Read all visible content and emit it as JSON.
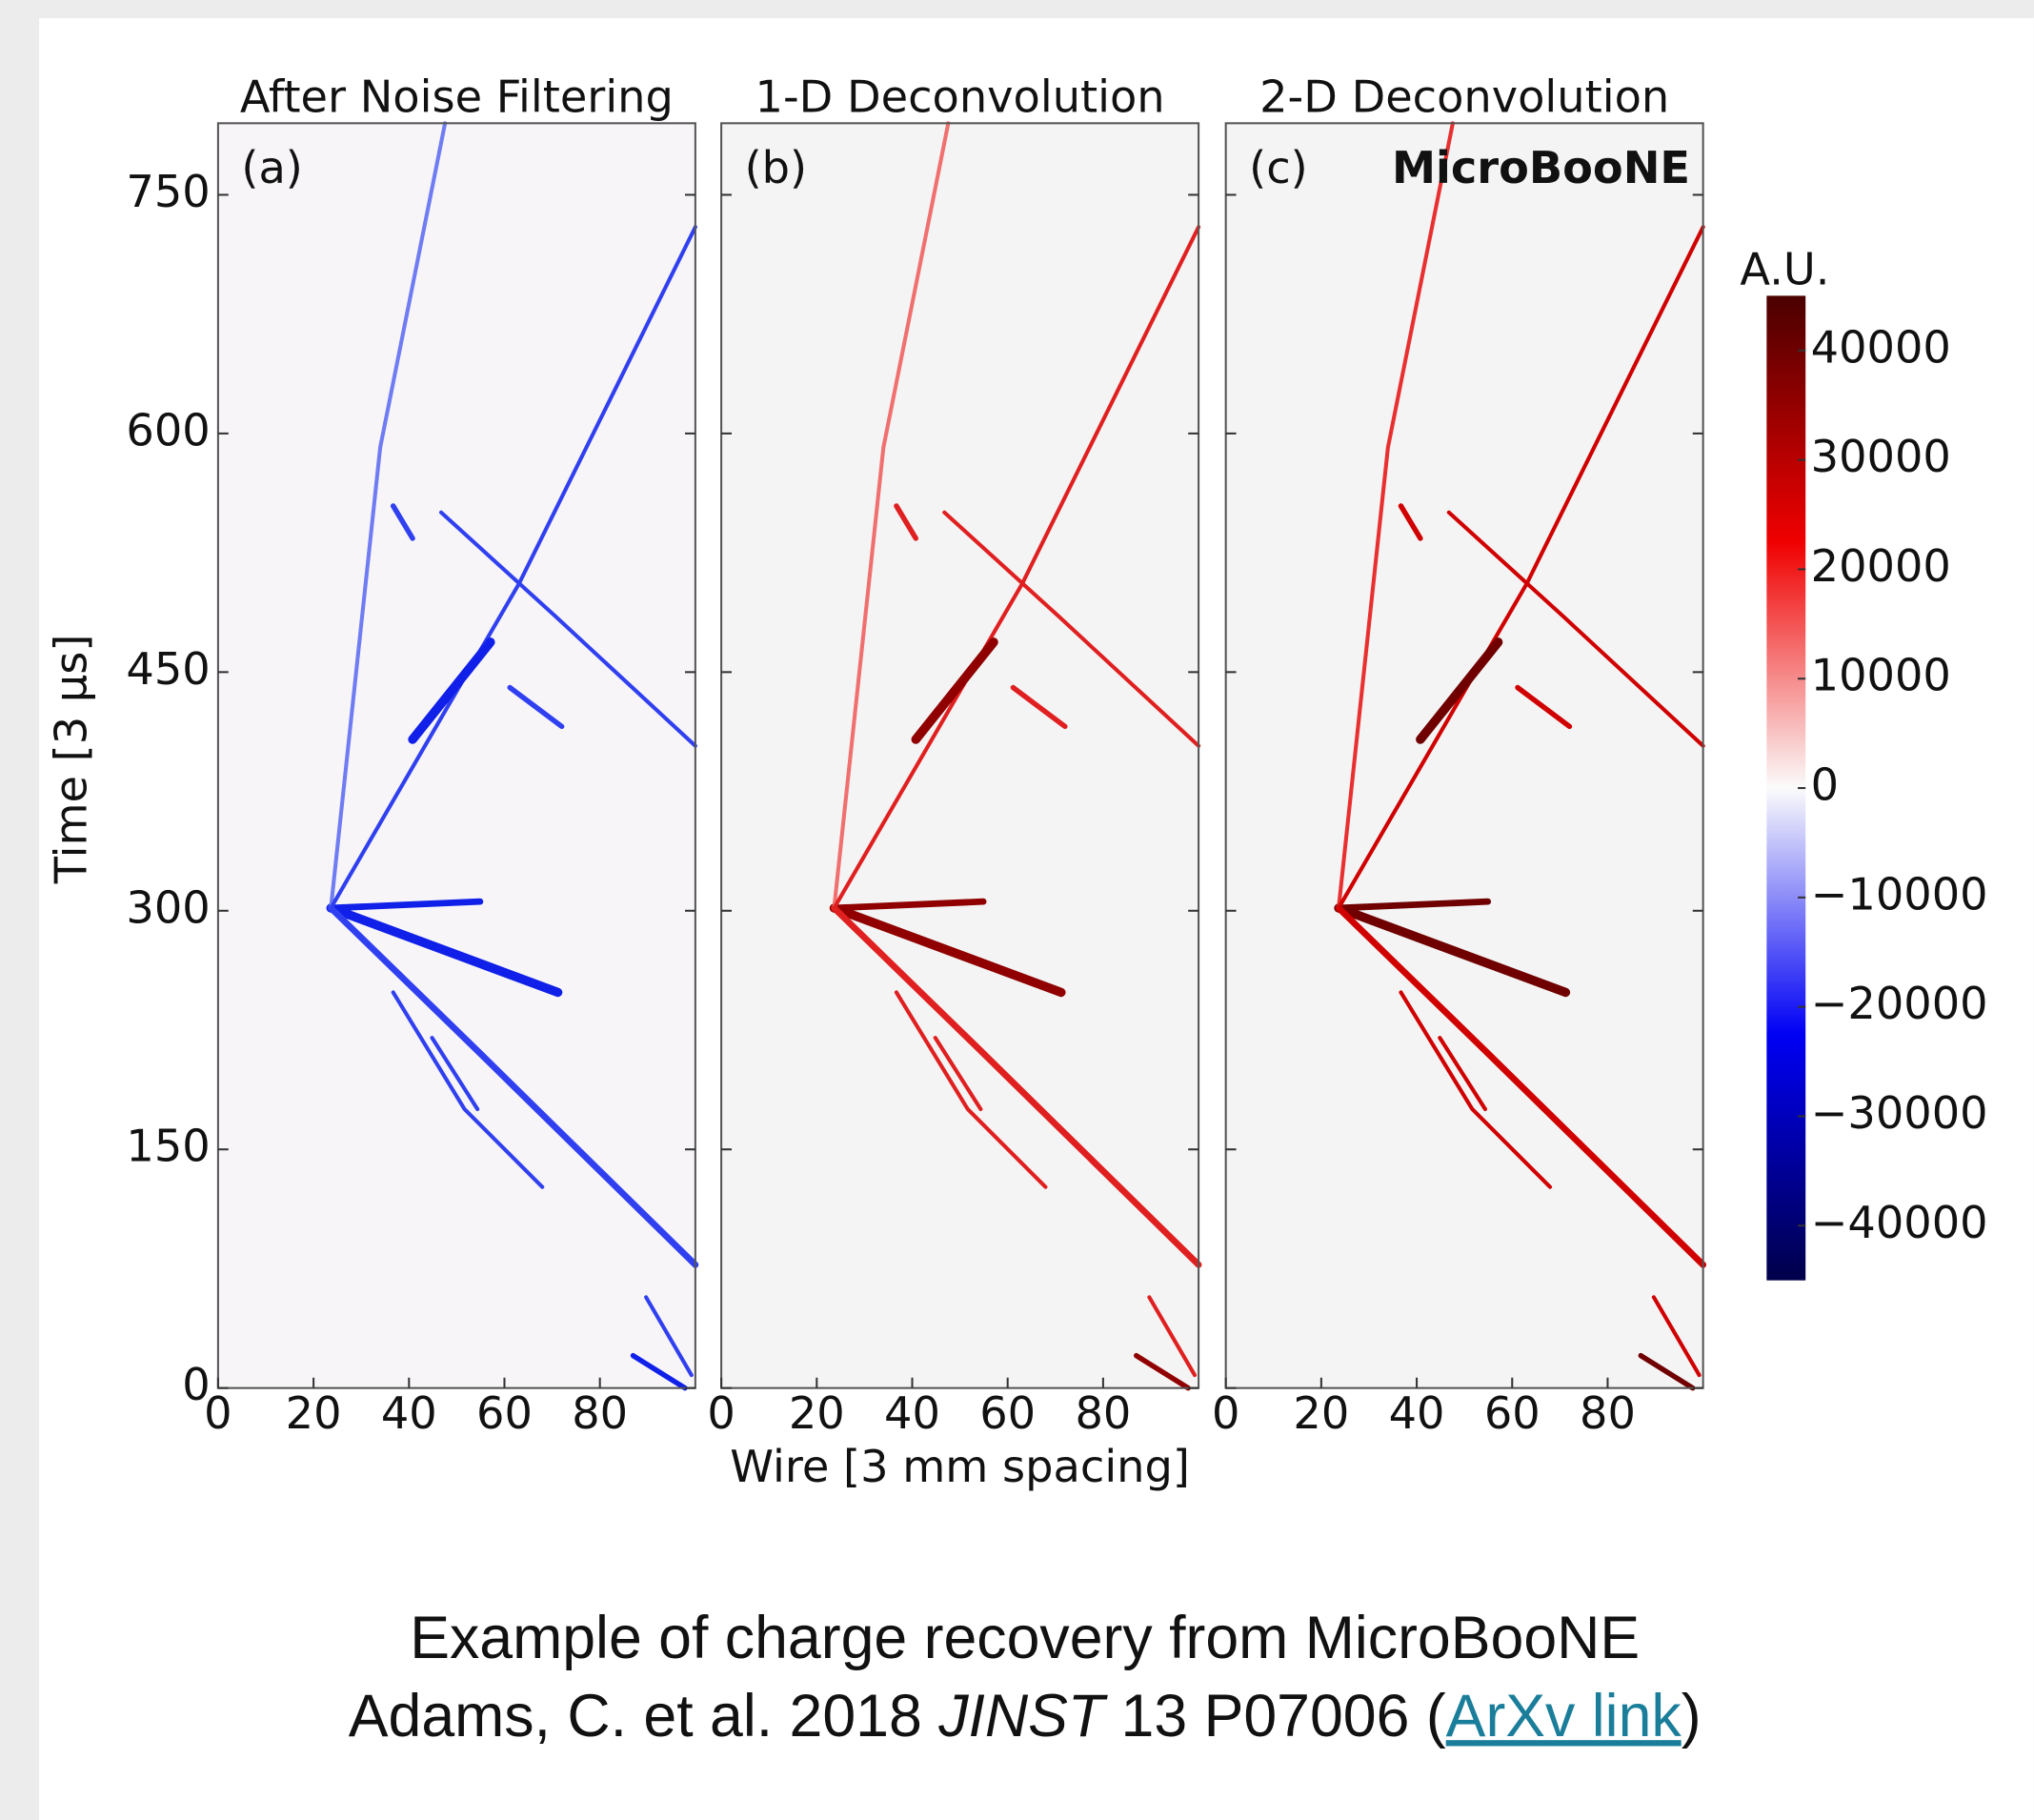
{
  "chart_data": [
    {
      "type": "heatmap",
      "title": "After Noise Filtering",
      "panel_label": "(a)",
      "ylabel": "Time [3 μs]",
      "xlim": [
        0,
        100
      ],
      "xticks": [
        0,
        20,
        40,
        60,
        80
      ],
      "ylim": [
        0,
        795
      ],
      "yticks": [
        0,
        150,
        300,
        450,
        600,
        750
      ]
    },
    {
      "type": "heatmap",
      "title": "1-D Deconvolution",
      "panel_label": "(b)",
      "xlabel": "Wire [3 mm spacing]",
      "xlim": [
        0,
        100
      ],
      "xticks": [
        0,
        20,
        40,
        60,
        80
      ],
      "ylim": [
        0,
        795
      ],
      "yticks": [
        0,
        150,
        300,
        450,
        600,
        750
      ]
    },
    {
      "type": "heatmap",
      "title": "2-D Deconvolution",
      "panel_label": "(c)",
      "annotation": "MicroBooNE",
      "xlim": [
        0,
        100
      ],
      "xticks": [
        0,
        20,
        40,
        60,
        80
      ],
      "ylim": [
        0,
        795
      ],
      "yticks": [
        0,
        150,
        300,
        450,
        600,
        750
      ]
    }
  ],
  "colorbar": {
    "label": "A.U.",
    "lim": [
      -45000,
      45000
    ],
    "ticks": [
      {
        "value": -40000,
        "label": "−40000"
      },
      {
        "value": -30000,
        "label": "−30000"
      },
      {
        "value": -20000,
        "label": "−20000"
      },
      {
        "value": -10000,
        "label": "−10000"
      },
      0,
      10000,
      20000,
      30000,
      40000
    ]
  },
  "caption": {
    "line1": "Example of charge recovery from MicroBooNE",
    "before": "Adams, C. et al. 2018 ",
    "journal": "JINST",
    "after": " 13 P07006 (",
    "link": "ArXv link",
    "closing": ")"
  }
}
